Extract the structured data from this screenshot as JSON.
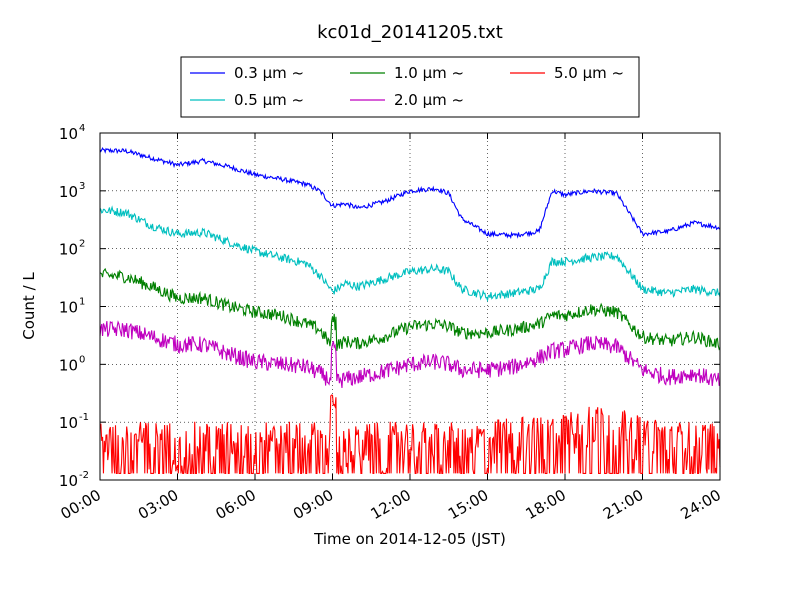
{
  "chart_data": {
    "type": "line",
    "title": "kc01d_20141205.txt",
    "xlabel": "Time on 2014-12-05 (JST)",
    "ylabel": "Count / L",
    "yscale": "log",
    "ylim": [
      0.01,
      10000
    ],
    "xlim": [
      "00:00",
      "24:00"
    ],
    "x_tick_labels": [
      "00:00",
      "03:00",
      "06:00",
      "09:00",
      "12:00",
      "15:00",
      "18:00",
      "21:00",
      "24:00"
    ],
    "y_tick_labels": [
      {
        "base": "10",
        "exp": "-2"
      },
      {
        "base": "10",
        "exp": "-1"
      },
      {
        "base": "10",
        "exp": "0"
      },
      {
        "base": "10",
        "exp": "1"
      },
      {
        "base": "10",
        "exp": "2"
      },
      {
        "base": "10",
        "exp": "3"
      },
      {
        "base": "10",
        "exp": "4"
      }
    ],
    "grid": true,
    "legend_position": "top, above plot",
    "x_hours": [
      0,
      1,
      2,
      3,
      4,
      5,
      6,
      7,
      8,
      8.5,
      9,
      9.5,
      10,
      11,
      12,
      13,
      13.5,
      14,
      15,
      16,
      17,
      17.5,
      18,
      19,
      20,
      21,
      22,
      23,
      24
    ],
    "series": [
      {
        "name": "0.3 μm ~",
        "color": "#0000ff",
        "values": [
          5000,
          4900,
          3700,
          2800,
          3300,
          2600,
          1900,
          1600,
          1300,
          1000,
          550,
          600,
          500,
          650,
          1000,
          1100,
          900,
          330,
          180,
          170,
          200,
          1000,
          850,
          1000,
          900,
          180,
          200,
          280,
          230
        ]
      },
      {
        "name": "0.5 μm ~",
        "color": "#00bfbf",
        "values": [
          470,
          420,
          250,
          180,
          190,
          130,
          90,
          70,
          55,
          35,
          18,
          25,
          22,
          30,
          40,
          45,
          40,
          20,
          15,
          17,
          20,
          60,
          60,
          70,
          75,
          20,
          17,
          20,
          17
        ]
      },
      {
        "name": "1.0 μm ~",
        "color": "#008000",
        "values": [
          35,
          33,
          22,
          14,
          14,
          10,
          8,
          7,
          5,
          4,
          2,
          2.5,
          2.3,
          3,
          4.5,
          5,
          4.5,
          3.5,
          3.5,
          4,
          5,
          7,
          7,
          9,
          8,
          3,
          2.5,
          3,
          2.2
        ]
      },
      {
        "name": "2.0 μm ~",
        "color": "#bf00bf",
        "values": [
          4,
          4,
          3,
          2.2,
          2.2,
          1.5,
          1.1,
          1,
          0.9,
          0.7,
          0.5,
          0.55,
          0.6,
          0.75,
          1.0,
          1.1,
          1.0,
          0.8,
          0.8,
          0.9,
          1.3,
          1.7,
          1.8,
          2.3,
          2,
          0.8,
          0.6,
          0.7,
          0.5
        ]
      },
      {
        "name": "5.0 μm ~",
        "color": "#ff0000",
        "values": [
          0.04,
          0.04,
          0.04,
          0.04,
          0.04,
          0.04,
          0.04,
          0.04,
          0.04,
          0.04,
          0.03,
          0.03,
          0.035,
          0.04,
          0.04,
          0.04,
          0.04,
          0.035,
          0.04,
          0.05,
          0.05,
          0.05,
          0.07,
          0.08,
          0.07,
          0.05,
          0.04,
          0.04,
          0.04
        ]
      }
    ],
    "annotations": [
      {
        "series": "5.0 μm ~",
        "x_hour": 9.1,
        "value": 0.3,
        "note": "spike"
      },
      {
        "series": "1.0 μm ~",
        "x_hour": 9.1,
        "value": 8,
        "note": "spike"
      },
      {
        "series": "2.0 μm ~",
        "x_hour": 9.1,
        "value": 3,
        "note": "spike"
      }
    ]
  }
}
